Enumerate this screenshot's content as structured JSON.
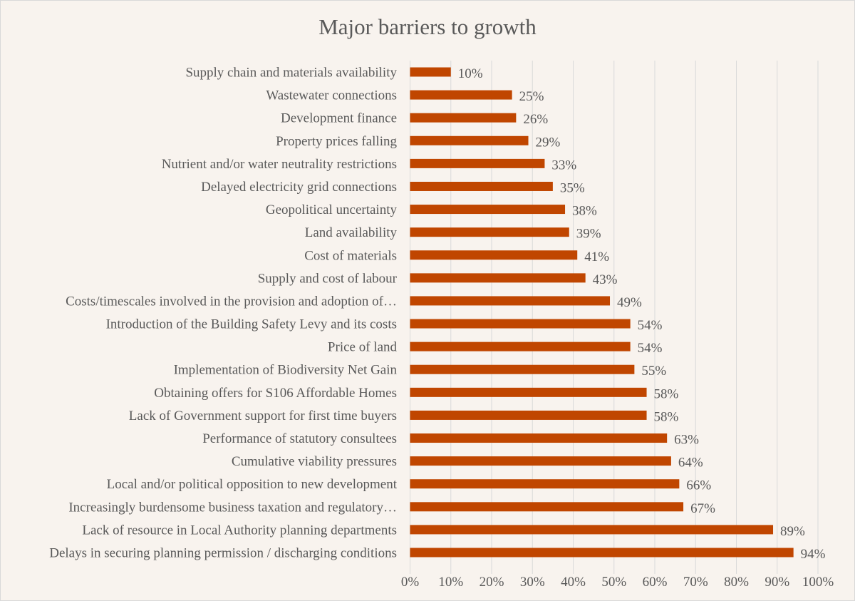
{
  "chart_data": {
    "type": "bar",
    "orientation": "horizontal",
    "title": "Major barriers to growth",
    "categories": [
      "Supply chain and materials availability",
      "Wastewater connections",
      "Development finance",
      "Property prices falling",
      "Nutrient and/or water neutrality restrictions",
      "Delayed electricity grid connections",
      "Geopolitical uncertainty",
      "Land availability",
      "Cost of materials",
      "Supply and cost of labour",
      "Costs/timescales involved in the provision and adoption of…",
      "Introduction of the Building Safety Levy and its costs",
      "Price of land",
      "Implementation of Biodiversity Net Gain",
      "Obtaining offers for S106 Affordable Homes",
      "Lack of Government support for first time buyers",
      "Performance of statutory consultees",
      "Cumulative viability pressures",
      "Local and/or political opposition to new development",
      "Increasingly burdensome business taxation and regulatory…",
      "Lack of resource in Local Authority planning departments",
      "Delays in securing planning permission / discharging conditions"
    ],
    "values": [
      10,
      25,
      26,
      29,
      33,
      35,
      38,
      39,
      41,
      43,
      49,
      54,
      54,
      55,
      58,
      58,
      63,
      64,
      66,
      67,
      89,
      94
    ],
    "data_labels": [
      "10%",
      "25%",
      "26%",
      "29%",
      "33%",
      "35%",
      "38%",
      "39%",
      "41%",
      "43%",
      "49%",
      "54%",
      "54%",
      "55%",
      "58%",
      "58%",
      "63%",
      "64%",
      "66%",
      "67%",
      "89%",
      "94%"
    ],
    "xlim": [
      0,
      100
    ],
    "xticks": [
      "0%",
      "10%",
      "20%",
      "30%",
      "40%",
      "50%",
      "60%",
      "70%",
      "80%",
      "90%",
      "100%"
    ],
    "xlabel": "",
    "ylabel": "",
    "grid": "vertical",
    "legend": "none",
    "bar_color": "#c04600",
    "background_color": "#f8f3ee"
  }
}
